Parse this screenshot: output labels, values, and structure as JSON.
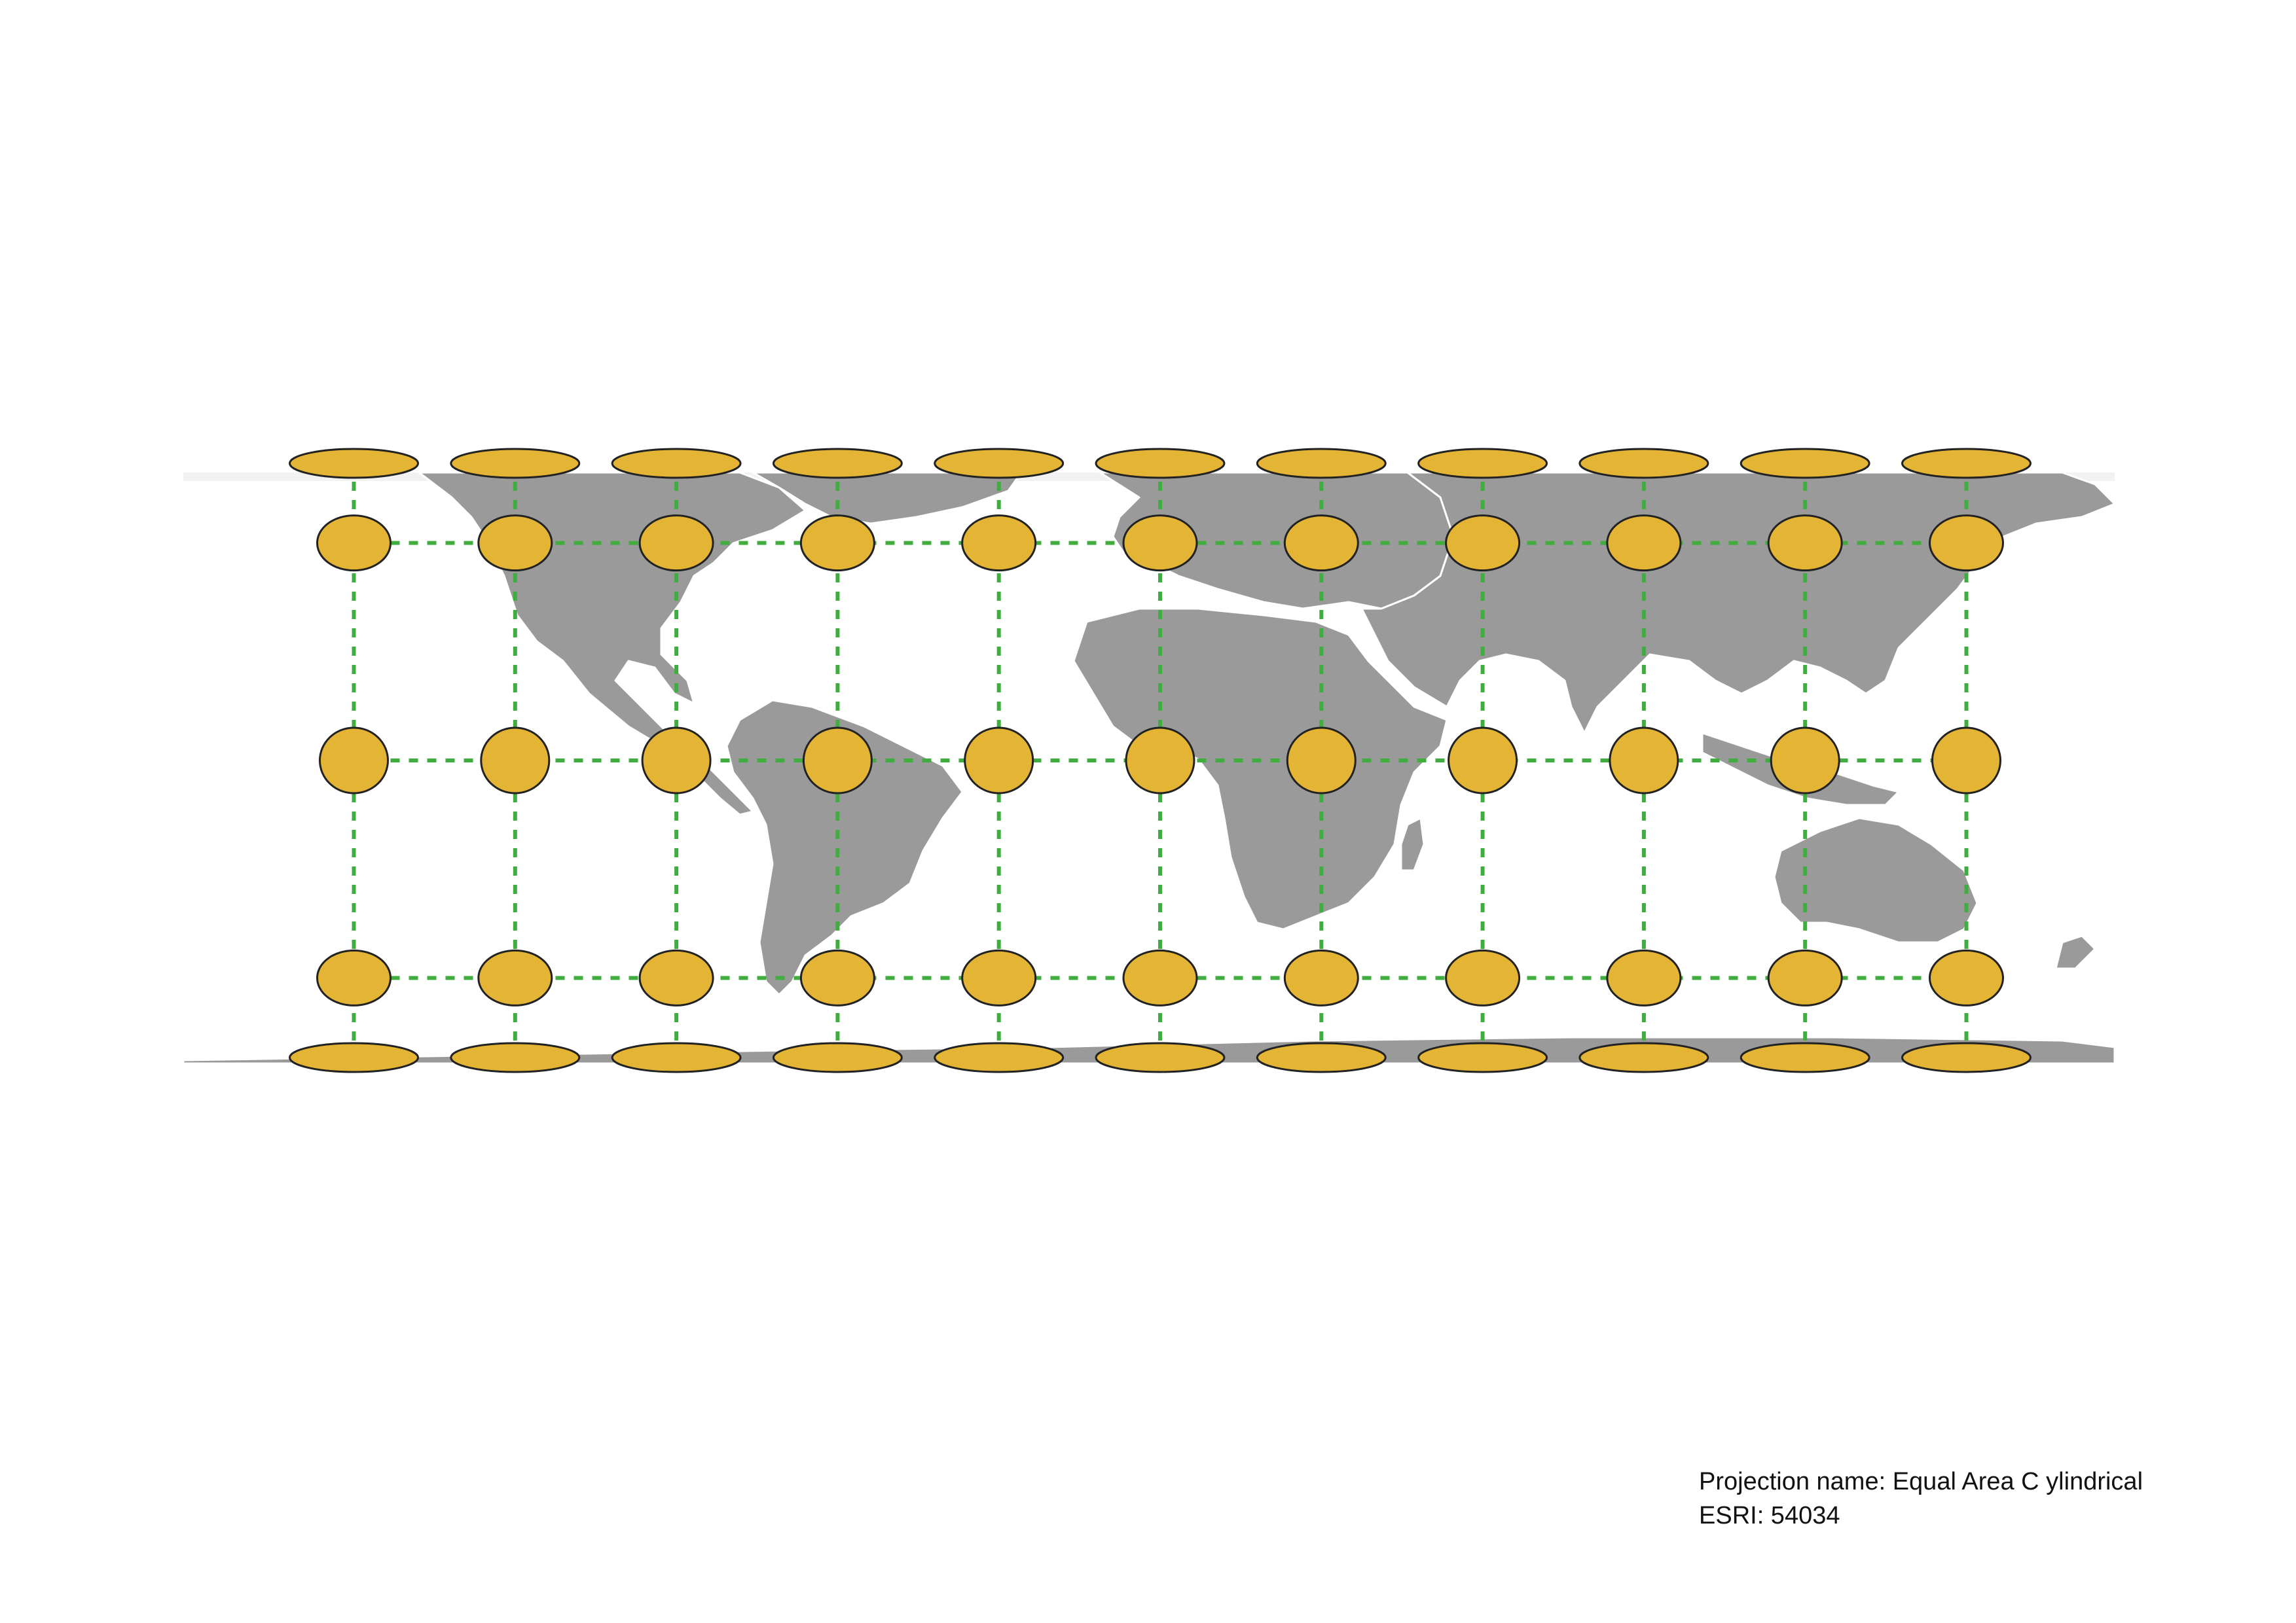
{
  "projection": {
    "name_line": "Projection name: Equal Area C ylindrical",
    "code_line": "ESRI: 54034"
  },
  "graticule": {
    "longitudes": [
      -150,
      -120,
      -90,
      -60,
      -30,
      0,
      30,
      60,
      90,
      120,
      150
    ],
    "latitudes": [
      75,
      45,
      0,
      -45,
      -75
    ]
  },
  "colors": {
    "land": "#9a9a9a",
    "borders": "#ffffff",
    "graticule": "#3fae3f",
    "indicatrix_fill": "#e4b535",
    "indicatrix_stroke": "#222222"
  }
}
